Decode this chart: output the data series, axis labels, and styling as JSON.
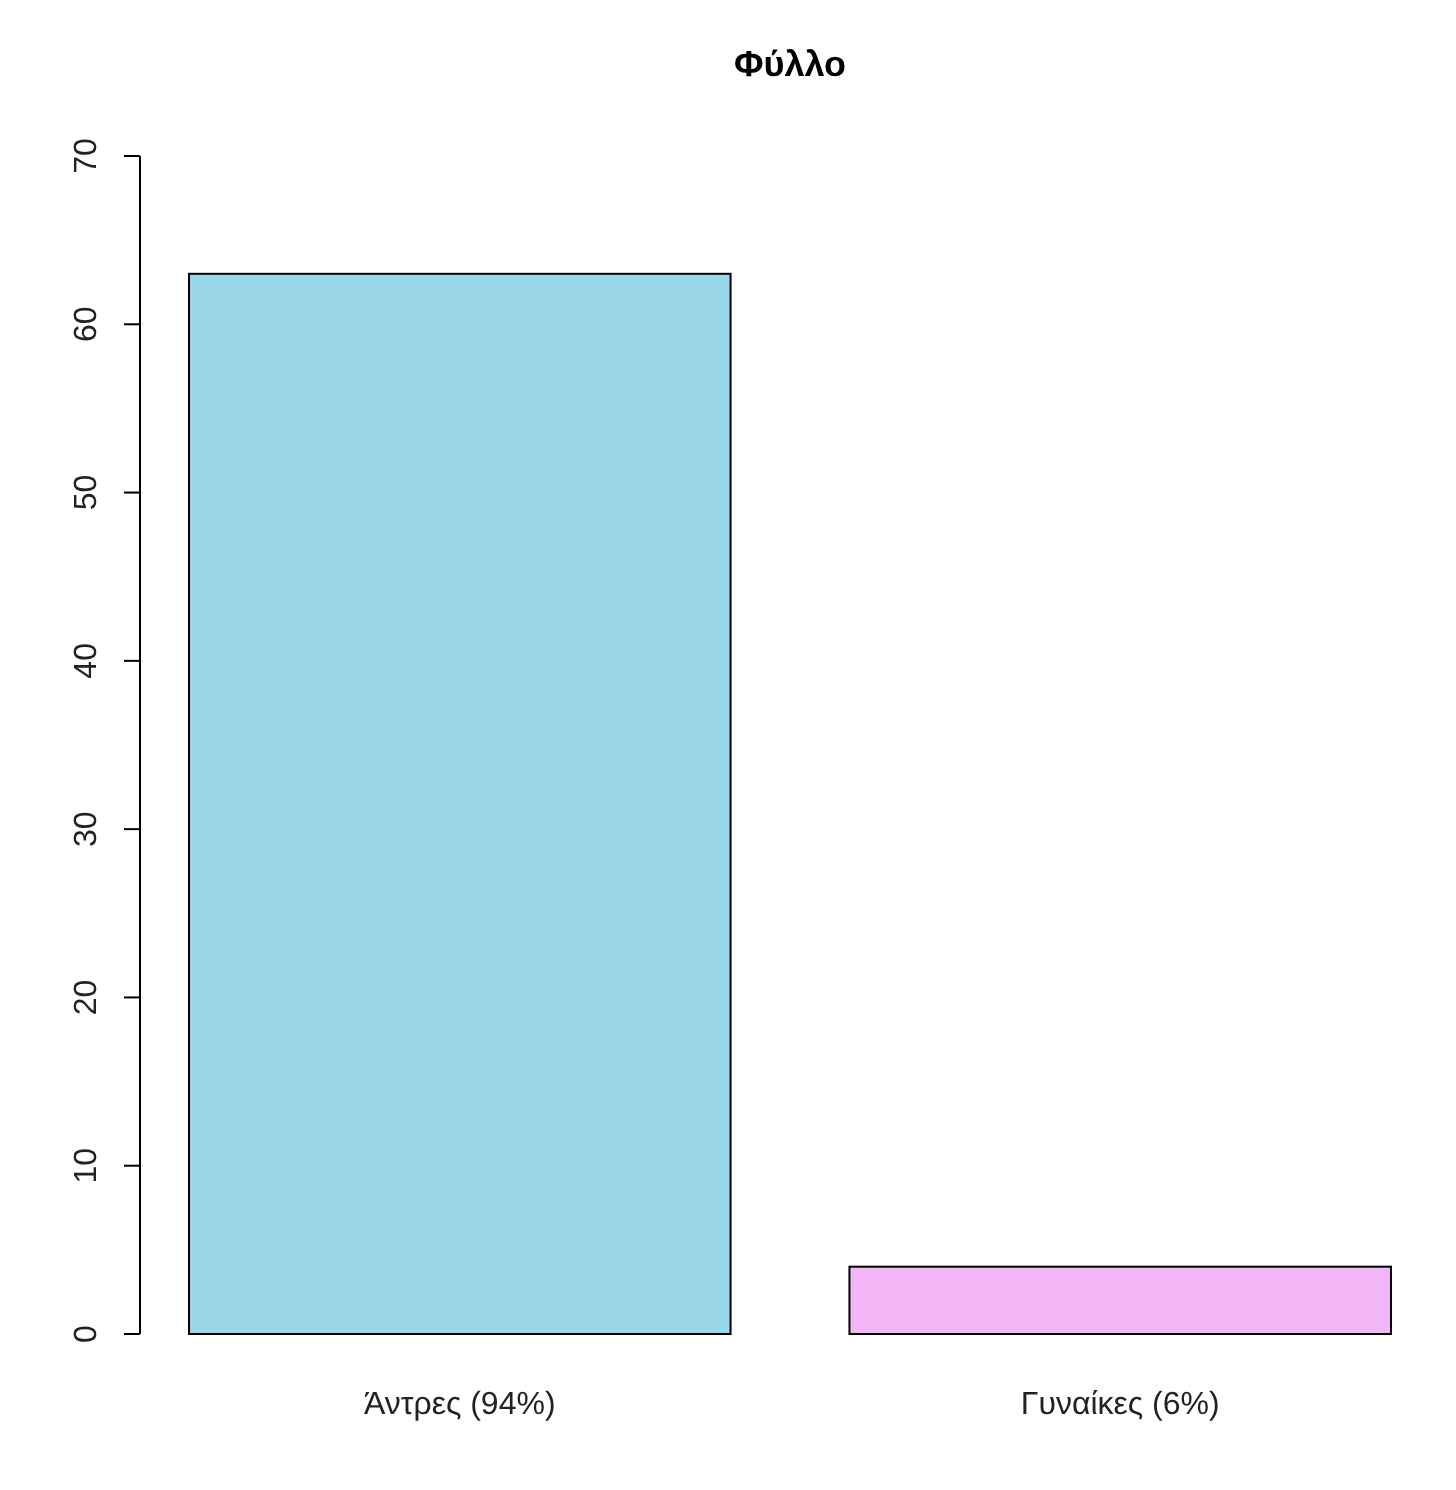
{
  "chart_data": {
    "type": "bar",
    "title": "Φύλλο",
    "categories": [
      "Άντρες (94%)",
      "Γυναίκες (6%)"
    ],
    "values": [
      63,
      4
    ],
    "colors": [
      "#9ad7e8",
      "#f2b6f7"
    ],
    "ylim": [
      0,
      70
    ],
    "yticks": [
      0,
      10,
      20,
      30,
      40,
      50,
      60,
      70
    ],
    "grid": false
  }
}
